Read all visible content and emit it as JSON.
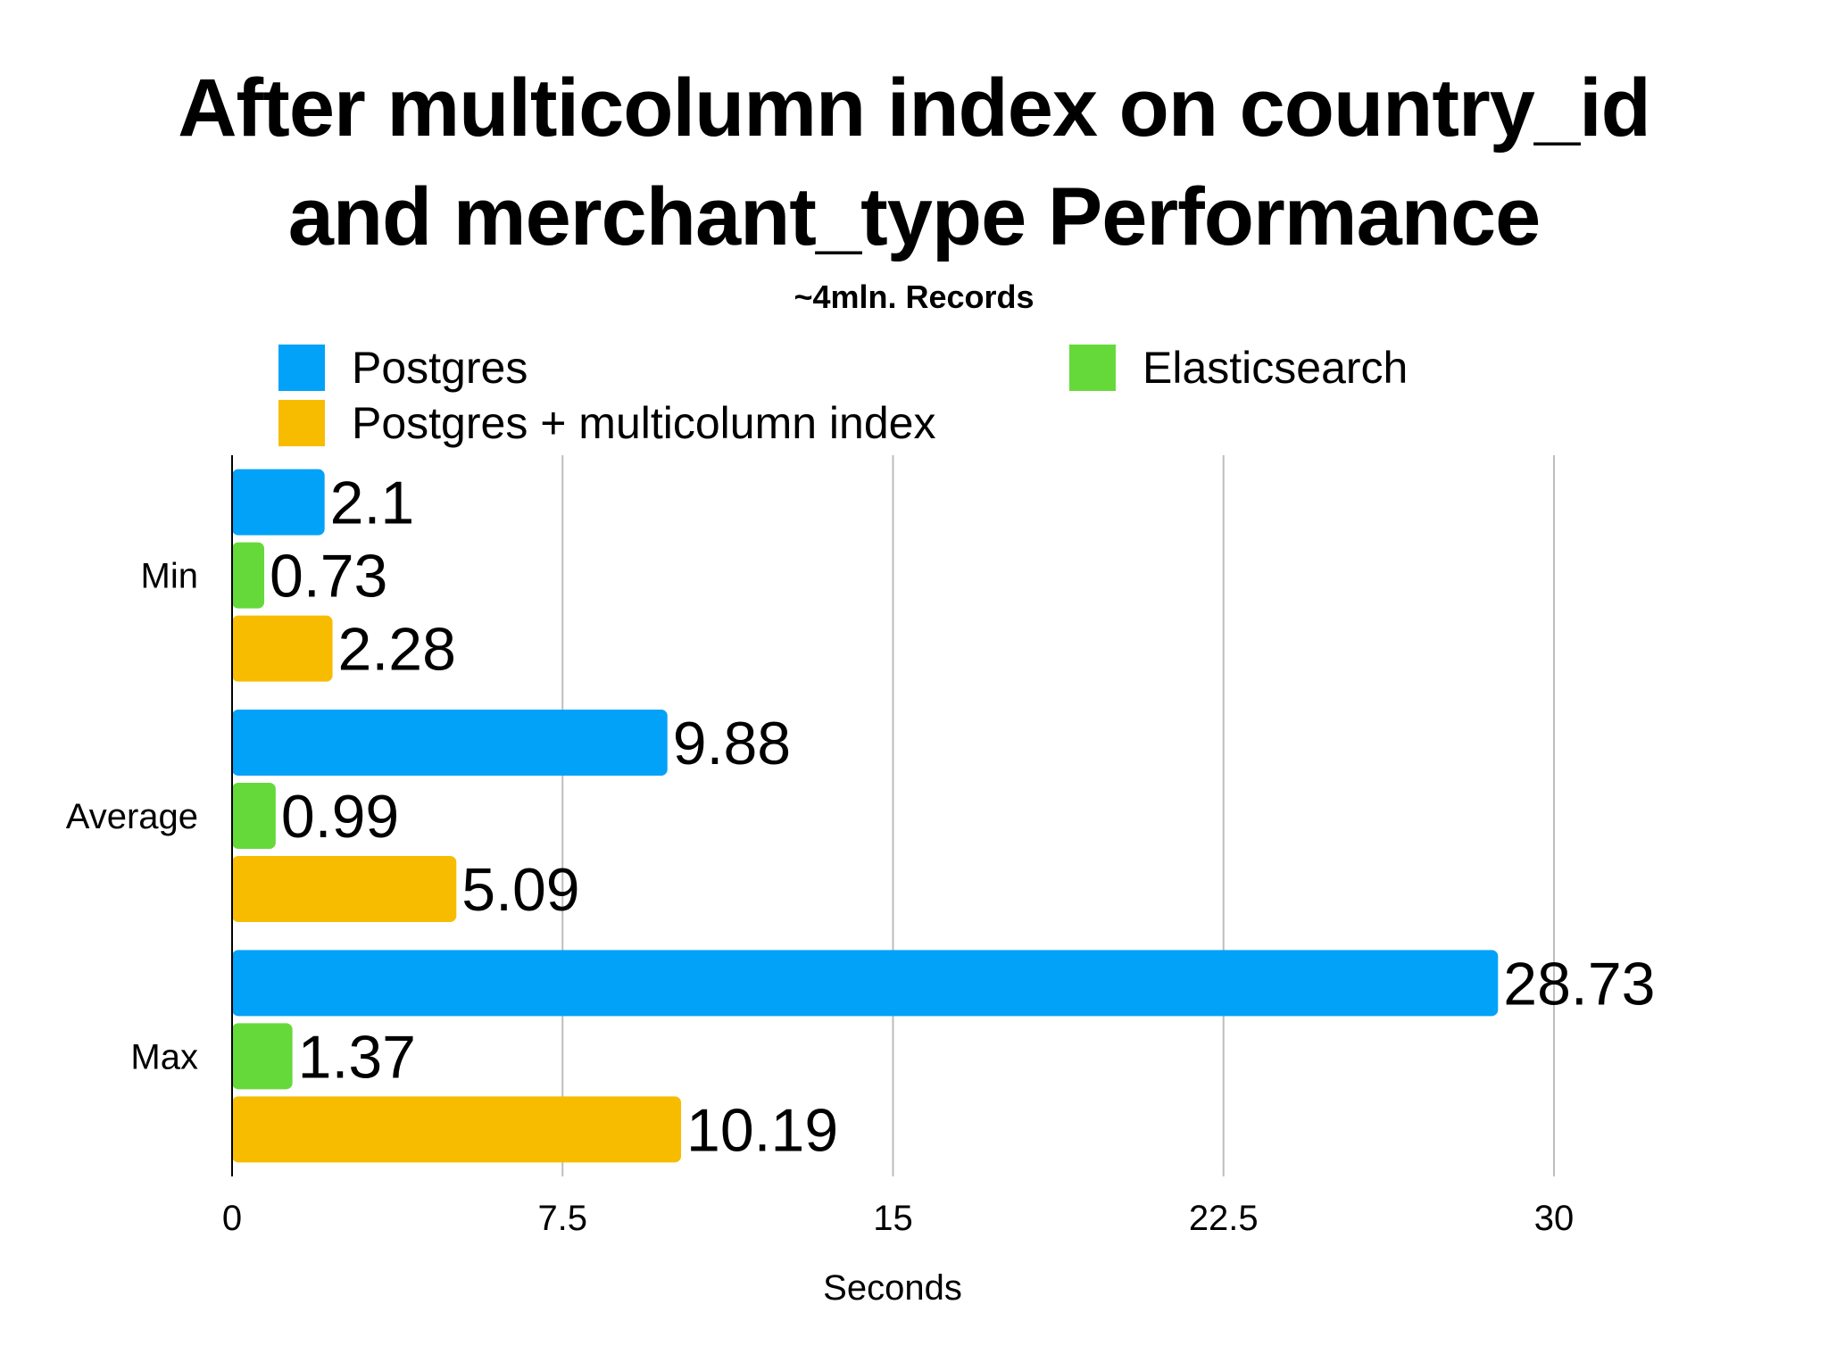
{
  "chart_data": {
    "type": "bar",
    "orientation": "horizontal",
    "title_line1": "After multicolumn index on country_id",
    "title_line2": "and merchant_type Performance",
    "subtitle": "~4mln. Records",
    "xlabel": "Seconds",
    "ylabel": "",
    "categories": [
      "Min",
      "Average",
      "Max"
    ],
    "series": [
      {
        "name": "Postgres",
        "color": "#03A2F9",
        "values": [
          2.1,
          9.88,
          28.73
        ],
        "labels": [
          "2.1",
          "9.88",
          "28.73"
        ]
      },
      {
        "name": "Elasticsearch",
        "color": "#66D93A",
        "values": [
          0.73,
          0.99,
          1.37
        ],
        "labels": [
          "0.73",
          "0.99",
          "1.37"
        ]
      },
      {
        "name": "Postgres + multicolumn index",
        "color": "#F7BC00",
        "values": [
          2.28,
          5.09,
          10.19
        ],
        "labels": [
          "2.28",
          "5.09",
          "10.19"
        ]
      }
    ],
    "xlim": [
      0,
      30
    ],
    "xticks": [
      0,
      7.5,
      15,
      22.5,
      30
    ],
    "xtick_labels": [
      "0",
      "7.5",
      "15",
      "22.5",
      "30"
    ],
    "grid": "vertical",
    "legend_position": "top"
  }
}
